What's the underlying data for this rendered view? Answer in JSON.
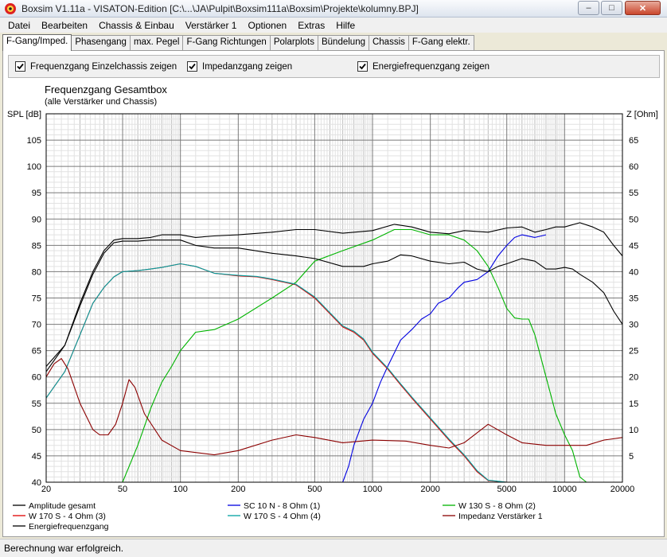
{
  "window": {
    "title": "Boxsim V1.11a - VISATON-Edition [C:\\...\\JA\\Pulpit\\Boxsim111a\\Boxsim\\Projekte\\kolumny.BPJ]",
    "minimize_label": "–",
    "maximize_label": "□",
    "close_label": "✕"
  },
  "menu": [
    "Datei",
    "Bearbeiten",
    "Chassis & Einbau",
    "Verstärker 1",
    "Optionen",
    "Extras",
    "Hilfe"
  ],
  "tabs": [
    {
      "label": "F-Gang/Imped.",
      "active": true
    },
    {
      "label": "Phasengang",
      "active": false
    },
    {
      "label": "max. Pegel",
      "active": false
    },
    {
      "label": "F-Gang Richtungen",
      "active": false
    },
    {
      "label": "Polarplots",
      "active": false
    },
    {
      "label": "Bündelung",
      "active": false
    },
    {
      "label": "Chassis",
      "active": false
    },
    {
      "label": "F-Gang elektr.",
      "active": false
    }
  ],
  "options": [
    {
      "label": "Frequenzgang Einzelchassis zeigen",
      "checked": true
    },
    {
      "label": "Impedanzgang zeigen",
      "checked": true
    },
    {
      "label": "Energiefrequenzgang zeigen",
      "checked": true
    }
  ],
  "status": "Berechnung war erfolgreich.",
  "chart_data": {
    "type": "line",
    "title": "Frequenzgang Gesamtbox",
    "subtitle": "(alle Verstärker und Chassis)",
    "ylabel_left": "SPL [dB]",
    "ylabel_right": "Z [Ohm]",
    "x_scale": "log",
    "xlim": [
      20,
      20000
    ],
    "ylim_left": [
      40,
      110
    ],
    "ylim_right": [
      0,
      70
    ],
    "x_ticks": [
      20,
      50,
      100,
      200,
      500,
      1000,
      2000,
      5000,
      10000,
      20000
    ],
    "x_tick_labels": [
      "20",
      "50",
      "100",
      "200",
      "500",
      "1000",
      "2000",
      "5000",
      "10000",
      "20000"
    ],
    "y_ticks_left": [
      40,
      45,
      50,
      55,
      60,
      65,
      70,
      75,
      80,
      85,
      90,
      95,
      100,
      105
    ],
    "y_ticks_right": [
      5,
      10,
      15,
      20,
      25,
      30,
      35,
      40,
      45,
      50,
      55,
      60,
      65
    ],
    "grid": true,
    "legend_position": "bottom",
    "series": [
      {
        "name": "Amplitude gesamt",
        "color": "#000000",
        "axis": "left",
        "points": [
          [
            20,
            62
          ],
          [
            25,
            66
          ],
          [
            30,
            74
          ],
          [
            35,
            80
          ],
          [
            40,
            84
          ],
          [
            45,
            86
          ],
          [
            50,
            86.3
          ],
          [
            60,
            86.3
          ],
          [
            70,
            86.5
          ],
          [
            80,
            87
          ],
          [
            100,
            87
          ],
          [
            120,
            86.5
          ],
          [
            150,
            86.8
          ],
          [
            200,
            87
          ],
          [
            300,
            87.5
          ],
          [
            400,
            88
          ],
          [
            500,
            88
          ],
          [
            700,
            87.3
          ],
          [
            1000,
            87.8
          ],
          [
            1300,
            89
          ],
          [
            1600,
            88.5
          ],
          [
            2000,
            87.5
          ],
          [
            2500,
            87.2
          ],
          [
            3000,
            87.8
          ],
          [
            4000,
            87.5
          ],
          [
            5000,
            88.3
          ],
          [
            6000,
            88.5
          ],
          [
            7000,
            87.5
          ],
          [
            8000,
            88
          ],
          [
            9000,
            88.5
          ],
          [
            10000,
            88.5
          ],
          [
            12000,
            89.3
          ],
          [
            14000,
            88.5
          ],
          [
            16000,
            87.5
          ],
          [
            18000,
            85
          ],
          [
            20000,
            83
          ]
        ]
      },
      {
        "name": "SC 10 N - 8 Ohm (1)",
        "color": "#0000e0",
        "axis": "left",
        "points": [
          [
            700,
            40
          ],
          [
            750,
            43
          ],
          [
            800,
            47
          ],
          [
            900,
            52
          ],
          [
            1000,
            55
          ],
          [
            1100,
            59
          ],
          [
            1200,
            62
          ],
          [
            1400,
            67
          ],
          [
            1600,
            69
          ],
          [
            1800,
            71
          ],
          [
            2000,
            72
          ],
          [
            2200,
            74
          ],
          [
            2500,
            75
          ],
          [
            2800,
            77
          ],
          [
            3000,
            78
          ],
          [
            3500,
            78.5
          ],
          [
            4000,
            80
          ],
          [
            4500,
            83
          ],
          [
            5000,
            85
          ],
          [
            5500,
            86.5
          ],
          [
            6000,
            87
          ],
          [
            7000,
            86.5
          ],
          [
            8000,
            87
          ]
        ]
      },
      {
        "name": "W 130 S - 8 Ohm (2)",
        "color": "#00b400",
        "axis": "left",
        "points": [
          [
            50,
            40
          ],
          [
            60,
            47
          ],
          [
            70,
            54
          ],
          [
            80,
            59
          ],
          [
            90,
            62
          ],
          [
            100,
            65
          ],
          [
            120,
            68.5
          ],
          [
            150,
            69
          ],
          [
            200,
            71
          ],
          [
            300,
            75
          ],
          [
            400,
            78
          ],
          [
            500,
            82
          ],
          [
            700,
            84
          ],
          [
            1000,
            86
          ],
          [
            1300,
            88
          ],
          [
            1600,
            88
          ],
          [
            2000,
            87
          ],
          [
            2500,
            87
          ],
          [
            3000,
            86
          ],
          [
            3500,
            84
          ],
          [
            4000,
            81
          ],
          [
            4500,
            77
          ],
          [
            5000,
            73
          ],
          [
            5500,
            71.2
          ],
          [
            6000,
            71
          ],
          [
            6500,
            71
          ],
          [
            7000,
            68
          ],
          [
            8000,
            60
          ],
          [
            9000,
            53
          ],
          [
            10000,
            49
          ],
          [
            11000,
            46
          ],
          [
            12000,
            41
          ],
          [
            13000,
            40
          ],
          [
            20000,
            40
          ]
        ]
      },
      {
        "name": "W 170 S - 4 Ohm (3)",
        "color": "#e00000",
        "axis": "left",
        "points": [
          [
            20,
            56
          ],
          [
            25,
            61
          ],
          [
            30,
            68
          ],
          [
            35,
            74
          ],
          [
            40,
            77
          ],
          [
            45,
            79
          ],
          [
            50,
            80
          ],
          [
            60,
            80.2
          ],
          [
            70,
            80.5
          ],
          [
            80,
            80.8
          ],
          [
            100,
            81.5
          ],
          [
            120,
            81
          ],
          [
            150,
            79.7
          ],
          [
            200,
            79.2
          ],
          [
            250,
            79
          ],
          [
            300,
            78.5
          ],
          [
            400,
            77.5
          ],
          [
            500,
            75
          ],
          [
            600,
            72
          ],
          [
            700,
            69.5
          ],
          [
            800,
            68.5
          ],
          [
            900,
            67
          ],
          [
            1000,
            64.5
          ],
          [
            1200,
            61.5
          ],
          [
            1400,
            58.5
          ],
          [
            1600,
            56
          ],
          [
            2000,
            52
          ],
          [
            2500,
            48
          ],
          [
            3000,
            45
          ],
          [
            3500,
            42
          ],
          [
            4000,
            40.3
          ],
          [
            5000,
            40
          ],
          [
            20000,
            40
          ]
        ]
      },
      {
        "name": "W 170 S - 4 Ohm (4)",
        "color": "#00a0a0",
        "axis": "left",
        "points": [
          [
            20,
            56
          ],
          [
            25,
            61
          ],
          [
            30,
            68
          ],
          [
            35,
            74
          ],
          [
            40,
            77
          ],
          [
            45,
            79
          ],
          [
            50,
            80
          ],
          [
            60,
            80.2
          ],
          [
            70,
            80.5
          ],
          [
            80,
            80.8
          ],
          [
            100,
            81.5
          ],
          [
            120,
            81
          ],
          [
            150,
            79.7
          ],
          [
            200,
            79.3
          ],
          [
            250,
            79.1
          ],
          [
            300,
            78.6
          ],
          [
            400,
            77.6
          ],
          [
            500,
            75.2
          ],
          [
            600,
            72.2
          ],
          [
            700,
            69.7
          ],
          [
            800,
            68.7
          ],
          [
            900,
            67.2
          ],
          [
            1000,
            64.7
          ],
          [
            1200,
            61.7
          ],
          [
            1400,
            58.7
          ],
          [
            1600,
            56.2
          ],
          [
            2000,
            52.2
          ],
          [
            2500,
            48.2
          ],
          [
            3000,
            45.2
          ],
          [
            3500,
            42.2
          ],
          [
            4000,
            40.4
          ],
          [
            5000,
            40
          ],
          [
            20000,
            40
          ]
        ]
      },
      {
        "name": "Impedanz Verstärker 1",
        "color": "#8b0000",
        "axis": "right",
        "points": [
          [
            20,
            20
          ],
          [
            22,
            22.5
          ],
          [
            24,
            23.5
          ],
          [
            26,
            21.5
          ],
          [
            30,
            15
          ],
          [
            35,
            10
          ],
          [
            38,
            9
          ],
          [
            42,
            9
          ],
          [
            46,
            11
          ],
          [
            50,
            15
          ],
          [
            54,
            19.5
          ],
          [
            58,
            18
          ],
          [
            65,
            13
          ],
          [
            80,
            8
          ],
          [
            100,
            6
          ],
          [
            150,
            5.2
          ],
          [
            200,
            6
          ],
          [
            300,
            8
          ],
          [
            400,
            9
          ],
          [
            500,
            8.5
          ],
          [
            700,
            7.5
          ],
          [
            1000,
            8
          ],
          [
            1500,
            7.8
          ],
          [
            2000,
            7
          ],
          [
            2500,
            6.5
          ],
          [
            3000,
            7.5
          ],
          [
            4000,
            11
          ],
          [
            5000,
            9
          ],
          [
            6000,
            7.5
          ],
          [
            8000,
            7
          ],
          [
            10000,
            7
          ],
          [
            13000,
            7
          ],
          [
            16000,
            8
          ],
          [
            20000,
            8.5
          ]
        ]
      },
      {
        "name": "Energiefrequenzgang",
        "color": "#000000",
        "axis": "left",
        "points": [
          [
            20,
            61
          ],
          [
            25,
            66
          ],
          [
            30,
            73.5
          ],
          [
            35,
            79.5
          ],
          [
            40,
            83.5
          ],
          [
            45,
            85.5
          ],
          [
            50,
            85.8
          ],
          [
            60,
            85.8
          ],
          [
            70,
            86
          ],
          [
            80,
            86
          ],
          [
            100,
            86
          ],
          [
            120,
            85
          ],
          [
            150,
            84.5
          ],
          [
            200,
            84.5
          ],
          [
            300,
            83.5
          ],
          [
            400,
            83
          ],
          [
            500,
            82.5
          ],
          [
            700,
            81
          ],
          [
            900,
            81
          ],
          [
            1000,
            81.5
          ],
          [
            1200,
            82
          ],
          [
            1400,
            83.2
          ],
          [
            1600,
            83
          ],
          [
            2000,
            82
          ],
          [
            2500,
            81.5
          ],
          [
            3000,
            81.8
          ],
          [
            3500,
            80.5
          ],
          [
            4000,
            80
          ],
          [
            4500,
            81
          ],
          [
            5000,
            81.5
          ],
          [
            6000,
            82.5
          ],
          [
            7000,
            82
          ],
          [
            8000,
            80.5
          ],
          [
            9000,
            80.5
          ],
          [
            10000,
            80.8
          ],
          [
            11000,
            80.5
          ],
          [
            12000,
            79.5
          ],
          [
            14000,
            78
          ],
          [
            16000,
            76
          ],
          [
            18000,
            72.5
          ],
          [
            20000,
            70
          ]
        ]
      }
    ]
  }
}
